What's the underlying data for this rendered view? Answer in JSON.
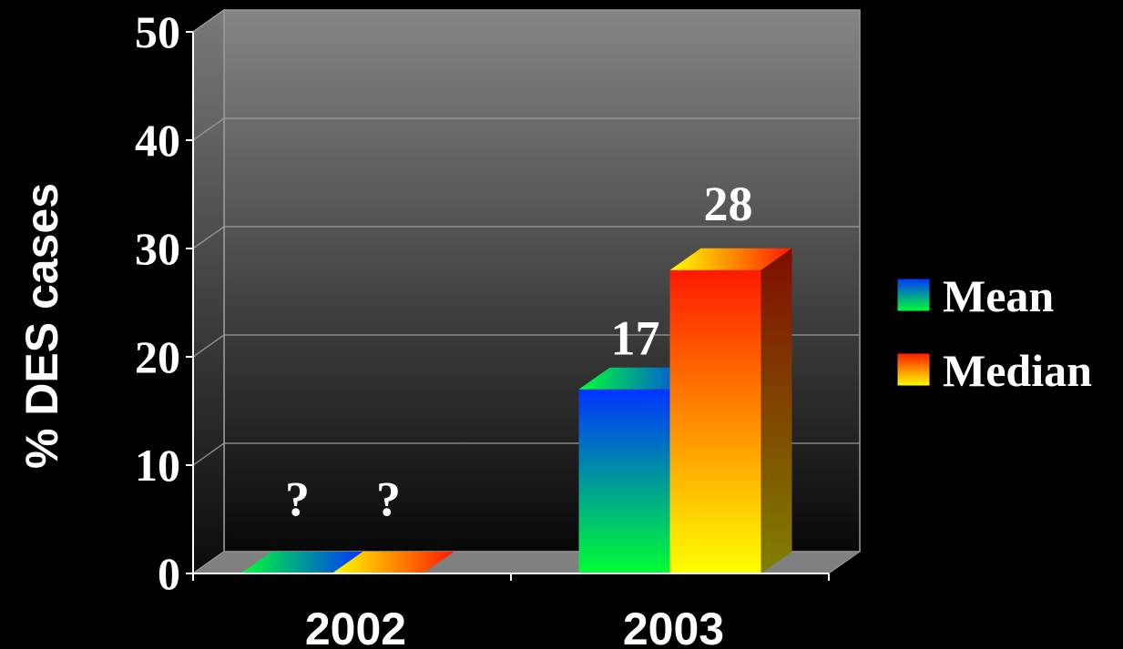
{
  "chart_data": {
    "type": "bar",
    "style": "3d-clustered-column",
    "categories": [
      "2002",
      "2003"
    ],
    "series": [
      {
        "name": "Mean",
        "values": [
          null,
          17
        ],
        "labels": [
          "?",
          "17"
        ],
        "colors": {
          "top": "#0033ff",
          "bottom": "#00ff33"
        }
      },
      {
        "name": "Median",
        "values": [
          null,
          28
        ],
        "labels": [
          "?",
          "28"
        ],
        "colors": {
          "top": "#ff1a00",
          "bottom": "#ffff00"
        }
      }
    ],
    "ylabel": "% DES cases",
    "xlabel": "",
    "ylim": [
      0,
      50
    ],
    "yticks": [
      "0",
      "10",
      "20",
      "30",
      "40",
      "50"
    ],
    "grid": true,
    "legend": "right",
    "background": "#000000"
  }
}
